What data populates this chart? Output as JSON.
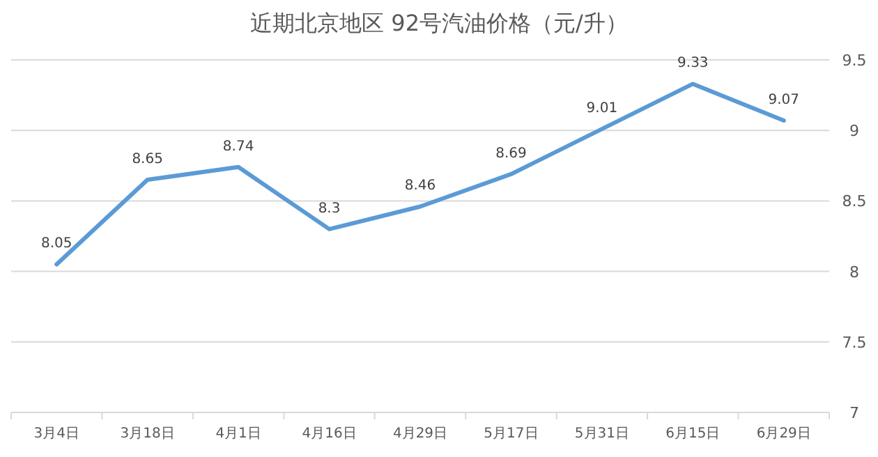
{
  "chart_data": {
    "type": "line",
    "title": "近期北京地区 92号汽油价格（元/升）",
    "categories": [
      "3月4日",
      "3月18日",
      "4月1日",
      "4月16日",
      "4月29日",
      "5月17日",
      "5月31日",
      "6月15日",
      "6月29日"
    ],
    "series": [
      {
        "color": "#5b9bd5",
        "values": [
          8.05,
          8.65,
          8.74,
          8.3,
          8.46,
          8.69,
          9.01,
          9.33,
          9.07
        ]
      }
    ],
    "ylim": [
      7,
      9.5
    ],
    "yticks": [
      7,
      7.5,
      8,
      8.5,
      9,
      9.5
    ],
    "grid": "y",
    "data_labels": true
  }
}
